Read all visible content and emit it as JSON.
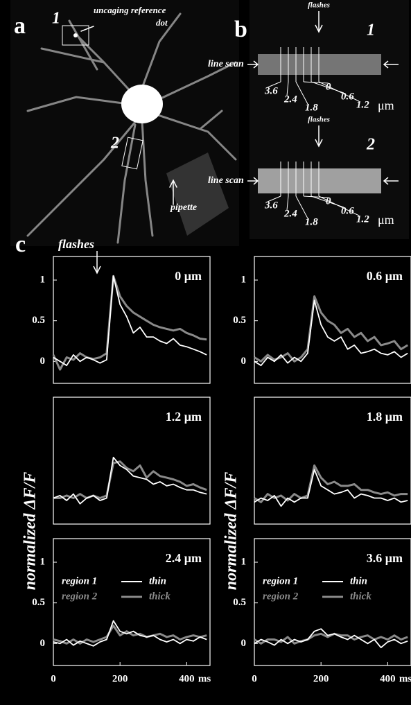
{
  "panels": {
    "a": {
      "label": "a",
      "region_labels": [
        "1",
        "2"
      ],
      "annotations": [
        "uncaging reference",
        "dot",
        "pipette"
      ]
    },
    "b": {
      "label": "b",
      "scans": [
        {
          "number": "1",
          "flashes": "flashes",
          "line_scan": "line scan",
          "distances": [
            "3.6",
            "2.4",
            "1.8",
            "0",
            "0.6",
            "1.2"
          ],
          "unit": "μm"
        },
        {
          "number": "2",
          "flashes": "flashes",
          "line_scan": "line scan",
          "distances": [
            "3.6",
            "2.4",
            "1.8",
            "0",
            "0.6",
            "1.2"
          ],
          "unit": "μm"
        }
      ]
    },
    "c": {
      "label": "c"
    }
  },
  "chart_data": [
    {
      "type": "line",
      "title": "0 μm",
      "annotation": "flashes",
      "x": [
        0,
        20,
        40,
        60,
        80,
        100,
        120,
        140,
        160,
        180,
        200,
        220,
        240,
        260,
        280,
        300,
        320,
        340,
        360,
        380,
        400,
        420,
        440,
        460
      ],
      "xlim": [
        0,
        470
      ],
      "ylim": [
        -0.27,
        1.29
      ],
      "yticks": [
        0,
        0.5,
        1
      ],
      "series": [
        {
          "name": "region 1",
          "color": "#ffffff",
          "values": [
            0.05,
            0.0,
            -0.05,
            0.08,
            0.0,
            0.05,
            0.02,
            -0.02,
            0.02,
            1.05,
            0.7,
            0.55,
            0.35,
            0.42,
            0.3,
            0.3,
            0.25,
            0.22,
            0.28,
            0.2,
            0.18,
            0.15,
            0.12,
            0.08
          ]
        },
        {
          "name": "region 2",
          "color": "#8a8a8a",
          "values": [
            0.08,
            -0.1,
            0.05,
            0.02,
            0.1,
            0.05,
            0.03,
            0.05,
            0.1,
            1.05,
            0.8,
            0.68,
            0.6,
            0.55,
            0.5,
            0.45,
            0.42,
            0.4,
            0.38,
            0.4,
            0.35,
            0.32,
            0.28,
            0.27
          ]
        }
      ]
    },
    {
      "type": "line",
      "title": "0.6 μm",
      "x": [
        0,
        20,
        40,
        60,
        80,
        100,
        120,
        140,
        160,
        180,
        200,
        220,
        240,
        260,
        280,
        300,
        320,
        340,
        360,
        380,
        400,
        420,
        440,
        460
      ],
      "xlim": [
        0,
        470
      ],
      "ylim": [
        -0.27,
        1.29
      ],
      "yticks": [
        0,
        0.5,
        1
      ],
      "series": [
        {
          "name": "region 1",
          "color": "#ffffff",
          "values": [
            0.0,
            -0.05,
            0.05,
            0.0,
            0.08,
            -0.02,
            0.05,
            0.0,
            0.1,
            0.75,
            0.45,
            0.3,
            0.25,
            0.3,
            0.15,
            0.2,
            0.1,
            0.12,
            0.15,
            0.1,
            0.08,
            0.12,
            0.05,
            0.1
          ]
        },
        {
          "name": "region 2",
          "color": "#8a8a8a",
          "values": [
            0.05,
            0.0,
            0.08,
            0.02,
            0.05,
            0.1,
            0.0,
            0.05,
            0.15,
            0.8,
            0.6,
            0.5,
            0.45,
            0.35,
            0.4,
            0.3,
            0.35,
            0.25,
            0.3,
            0.2,
            0.22,
            0.25,
            0.15,
            0.2
          ]
        }
      ]
    },
    {
      "type": "line",
      "title": "1.2 μm",
      "ylabel": "normalized ΔF/F",
      "x": [
        0,
        20,
        40,
        60,
        80,
        100,
        120,
        140,
        160,
        180,
        200,
        220,
        240,
        260,
        280,
        300,
        320,
        340,
        360,
        380,
        400,
        420,
        440,
        460
      ],
      "xlim": [
        0,
        470
      ],
      "ylim": [
        -0.27,
        1.29
      ],
      "series": [
        {
          "name": "region 1",
          "color": "#ffffff",
          "values": [
            0.05,
            0.08,
            0.02,
            0.1,
            -0.02,
            0.05,
            0.08,
            0.02,
            0.05,
            0.55,
            0.45,
            0.4,
            0.32,
            0.3,
            0.28,
            0.22,
            0.25,
            0.2,
            0.22,
            0.18,
            0.15,
            0.15,
            0.12,
            0.1
          ]
        },
        {
          "name": "region 2",
          "color": "#8a8a8a",
          "values": [
            0.05,
            0.05,
            0.08,
            0.05,
            0.1,
            0.05,
            0.08,
            0.05,
            0.08,
            0.48,
            0.5,
            0.42,
            0.38,
            0.45,
            0.3,
            0.38,
            0.32,
            0.3,
            0.28,
            0.25,
            0.2,
            0.22,
            0.18,
            0.15
          ]
        }
      ]
    },
    {
      "type": "line",
      "title": "1.8 μm",
      "ylabel": "normalized ΔF/F",
      "x": [
        0,
        20,
        40,
        60,
        80,
        100,
        120,
        140,
        160,
        180,
        200,
        220,
        240,
        260,
        280,
        300,
        320,
        340,
        360,
        380,
        400,
        420,
        440,
        460
      ],
      "xlim": [
        0,
        470
      ],
      "ylim": [
        -0.27,
        1.29
      ],
      "series": [
        {
          "name": "region 1",
          "color": "#ffffff",
          "values": [
            0.0,
            0.05,
            0.02,
            0.08,
            -0.05,
            0.05,
            0.0,
            0.05,
            0.05,
            0.4,
            0.2,
            0.15,
            0.1,
            0.12,
            0.15,
            0.05,
            0.1,
            0.08,
            0.05,
            0.05,
            0.02,
            0.05,
            0.0,
            0.02
          ]
        },
        {
          "name": "region 2",
          "color": "#8a8a8a",
          "values": [
            0.05,
            0.0,
            0.1,
            0.05,
            0.08,
            0.02,
            0.1,
            0.05,
            0.08,
            0.45,
            0.3,
            0.22,
            0.25,
            0.2,
            0.2,
            0.22,
            0.15,
            0.15,
            0.12,
            0.1,
            0.12,
            0.08,
            0.1,
            0.1
          ]
        }
      ]
    },
    {
      "type": "line",
      "title": "2.4 μm",
      "xlabel": "ms",
      "legend": true,
      "x": [
        0,
        20,
        40,
        60,
        80,
        100,
        120,
        140,
        160,
        180,
        200,
        220,
        240,
        260,
        280,
        300,
        320,
        340,
        360,
        380,
        400,
        420,
        440,
        460
      ],
      "xlim": [
        0,
        470
      ],
      "xticks": [
        0,
        200,
        400
      ],
      "ylim": [
        -0.27,
        1.29
      ],
      "yticks": [
        0,
        0.5,
        1
      ],
      "series": [
        {
          "name": "region 1",
          "legend_note": "thin",
          "color": "#ffffff",
          "values": [
            0.02,
            0.0,
            0.05,
            -0.02,
            0.03,
            0.0,
            -0.03,
            0.02,
            0.05,
            0.28,
            0.15,
            0.12,
            0.15,
            0.1,
            0.08,
            0.1,
            0.05,
            0.02,
            0.05,
            0.0,
            0.05,
            0.03,
            0.08,
            0.05
          ]
        },
        {
          "name": "region 2",
          "legend_note": "thick",
          "color": "#8a8a8a",
          "values": [
            0.05,
            0.03,
            0.0,
            0.05,
            0.0,
            0.05,
            0.02,
            0.05,
            0.08,
            0.22,
            0.1,
            0.15,
            0.1,
            0.12,
            0.08,
            0.1,
            0.12,
            0.08,
            0.1,
            0.05,
            0.08,
            0.1,
            0.08,
            0.1
          ]
        }
      ]
    },
    {
      "type": "line",
      "title": "3.6 μm",
      "xlabel": "ms",
      "legend": true,
      "x": [
        0,
        20,
        40,
        60,
        80,
        100,
        120,
        140,
        160,
        180,
        200,
        220,
        240,
        260,
        280,
        300,
        320,
        340,
        360,
        380,
        400,
        420,
        440,
        460
      ],
      "xlim": [
        0,
        470
      ],
      "xticks": [
        0,
        200,
        400
      ],
      "ylim": [
        -0.27,
        1.29
      ],
      "yticks": [
        0,
        0.5,
        1
      ],
      "series": [
        {
          "name": "region 1",
          "legend_note": "thin",
          "color": "#ffffff",
          "values": [
            0.0,
            0.05,
            0.02,
            -0.02,
            0.05,
            0.0,
            0.05,
            0.02,
            0.05,
            0.15,
            0.18,
            0.1,
            0.12,
            0.08,
            0.05,
            0.1,
            0.05,
            0.0,
            0.05,
            -0.05,
            0.02,
            0.05,
            0.0,
            0.03
          ]
        },
        {
          "name": "region 2",
          "legend_note": "thick",
          "color": "#8a8a8a",
          "values": [
            0.05,
            0.0,
            0.05,
            0.05,
            0.02,
            0.08,
            0.0,
            0.03,
            0.05,
            0.1,
            0.12,
            0.08,
            0.12,
            0.1,
            0.1,
            0.05,
            0.08,
            0.1,
            0.05,
            0.08,
            0.05,
            0.1,
            0.05,
            0.08
          ]
        }
      ]
    }
  ]
}
